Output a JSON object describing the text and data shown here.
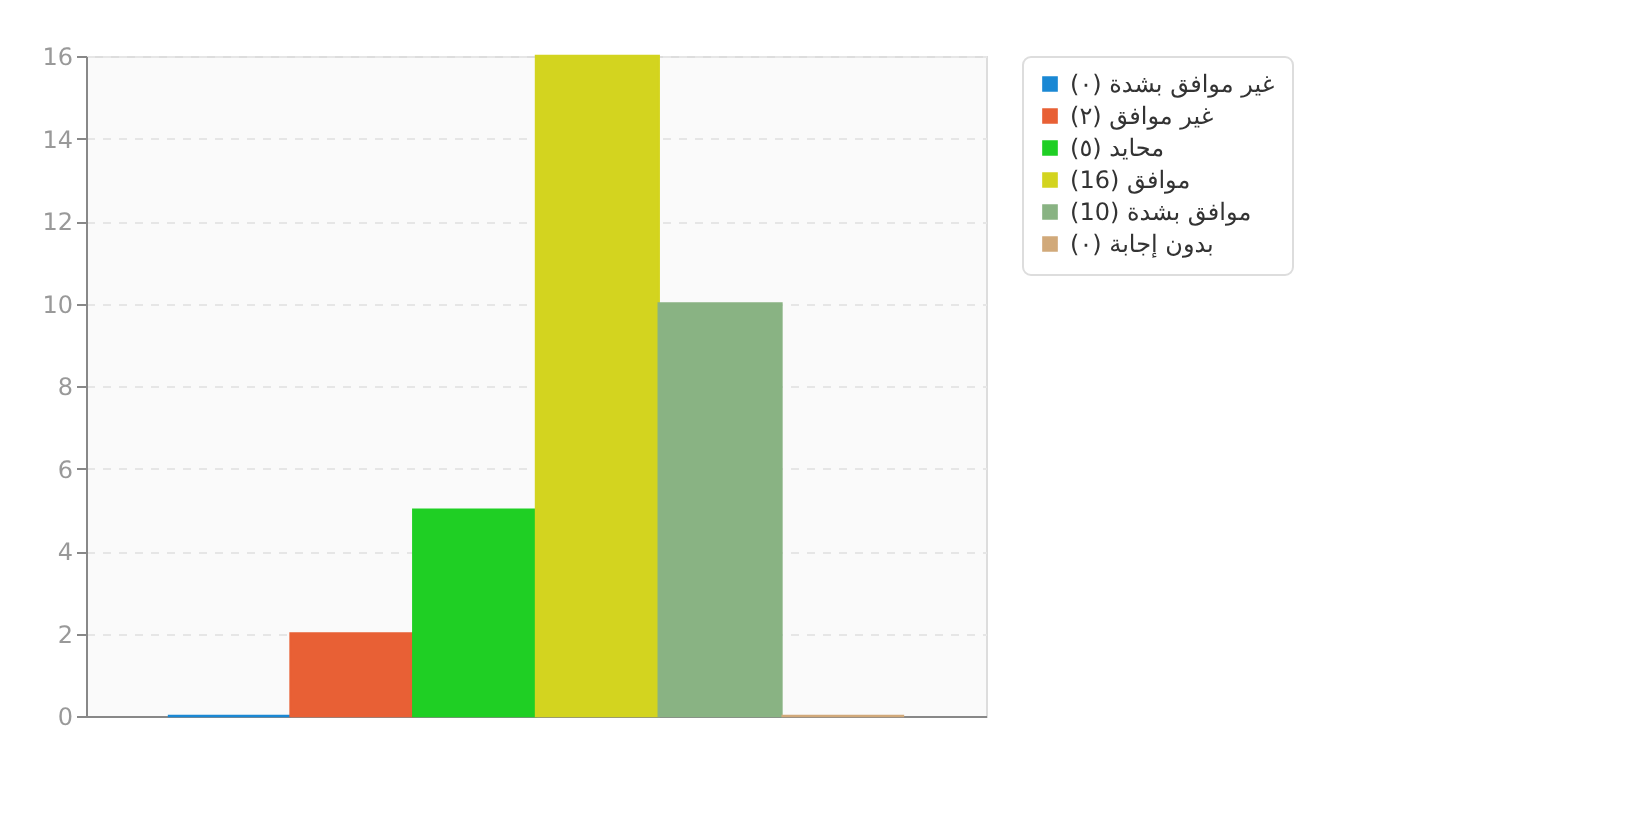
{
  "chart_data": {
    "type": "bar",
    "categories": [
      null
    ],
    "series": [
      {
        "name": "غير موافق بشدة (٠)",
        "color": "#1a88d4",
        "values": [
          0
        ]
      },
      {
        "name": "غير موافق (٢)",
        "color": "#e86035",
        "values": [
          2
        ]
      },
      {
        "name": "محايد (٥)",
        "color": "#1fcf24",
        "values": [
          5
        ]
      },
      {
        "name": "موافق (16)",
        "color": "#d3d41f",
        "values": [
          16
        ]
      },
      {
        "name": "موافق بشدة (10)",
        "color": "#89b383",
        "values": [
          10
        ]
      },
      {
        "name": "بدون إجابة (٠)",
        "color": "#d1a97a",
        "values": [
          0
        ]
      }
    ],
    "ylim": [
      0,
      16
    ],
    "yticks": [
      0,
      2,
      4,
      6,
      8,
      10,
      12,
      14,
      16
    ],
    "grid": "y",
    "legend": "right",
    "tick_labels": "y"
  }
}
